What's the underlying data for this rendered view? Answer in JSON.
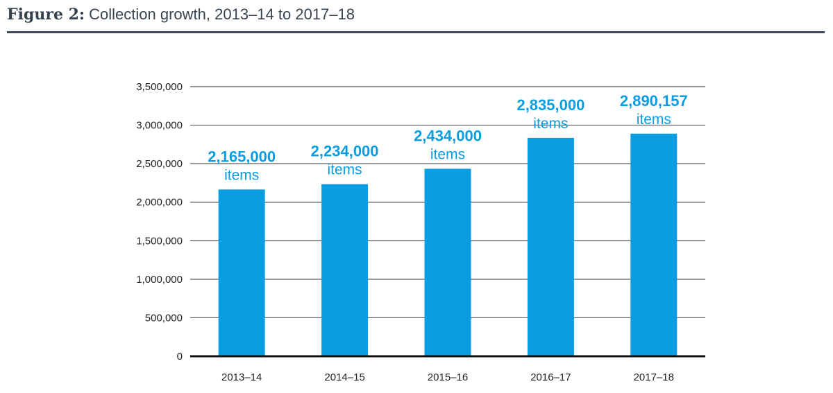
{
  "figure": {
    "label": "Figure 2:",
    "title": "Collection growth, 2013–14 to 2017–18"
  },
  "colors": {
    "bar": "#0a9de1",
    "label": "#0a9de1",
    "rule": "#3d4a5c",
    "gridline": "#555555",
    "axis": "#111111",
    "text": "#222222"
  },
  "chart_data": {
    "type": "bar",
    "title": "Collection growth, 2013–14 to 2017–18",
    "xlabel": "",
    "ylabel": "",
    "categories": [
      "2013–14",
      "2014–15",
      "2015–16",
      "2016–17",
      "2017–18"
    ],
    "values": [
      2165000,
      2234000,
      2434000,
      2835000,
      2890157
    ],
    "value_labels": [
      "2,165,000",
      "2,234,000",
      "2,434,000",
      "2,835,000",
      "2,890,157"
    ],
    "unit_label": "items",
    "ylim": [
      0,
      3500000
    ],
    "yticks": [
      0,
      500000,
      1000000,
      1500000,
      2000000,
      2500000,
      3000000,
      3500000
    ],
    "ytick_labels": [
      "0",
      "500,000",
      "1,000,000",
      "1,500,000",
      "2,000,000",
      "2,500,000",
      "3,000,000",
      "3,500,000"
    ],
    "grid": true,
    "legend": "none"
  }
}
